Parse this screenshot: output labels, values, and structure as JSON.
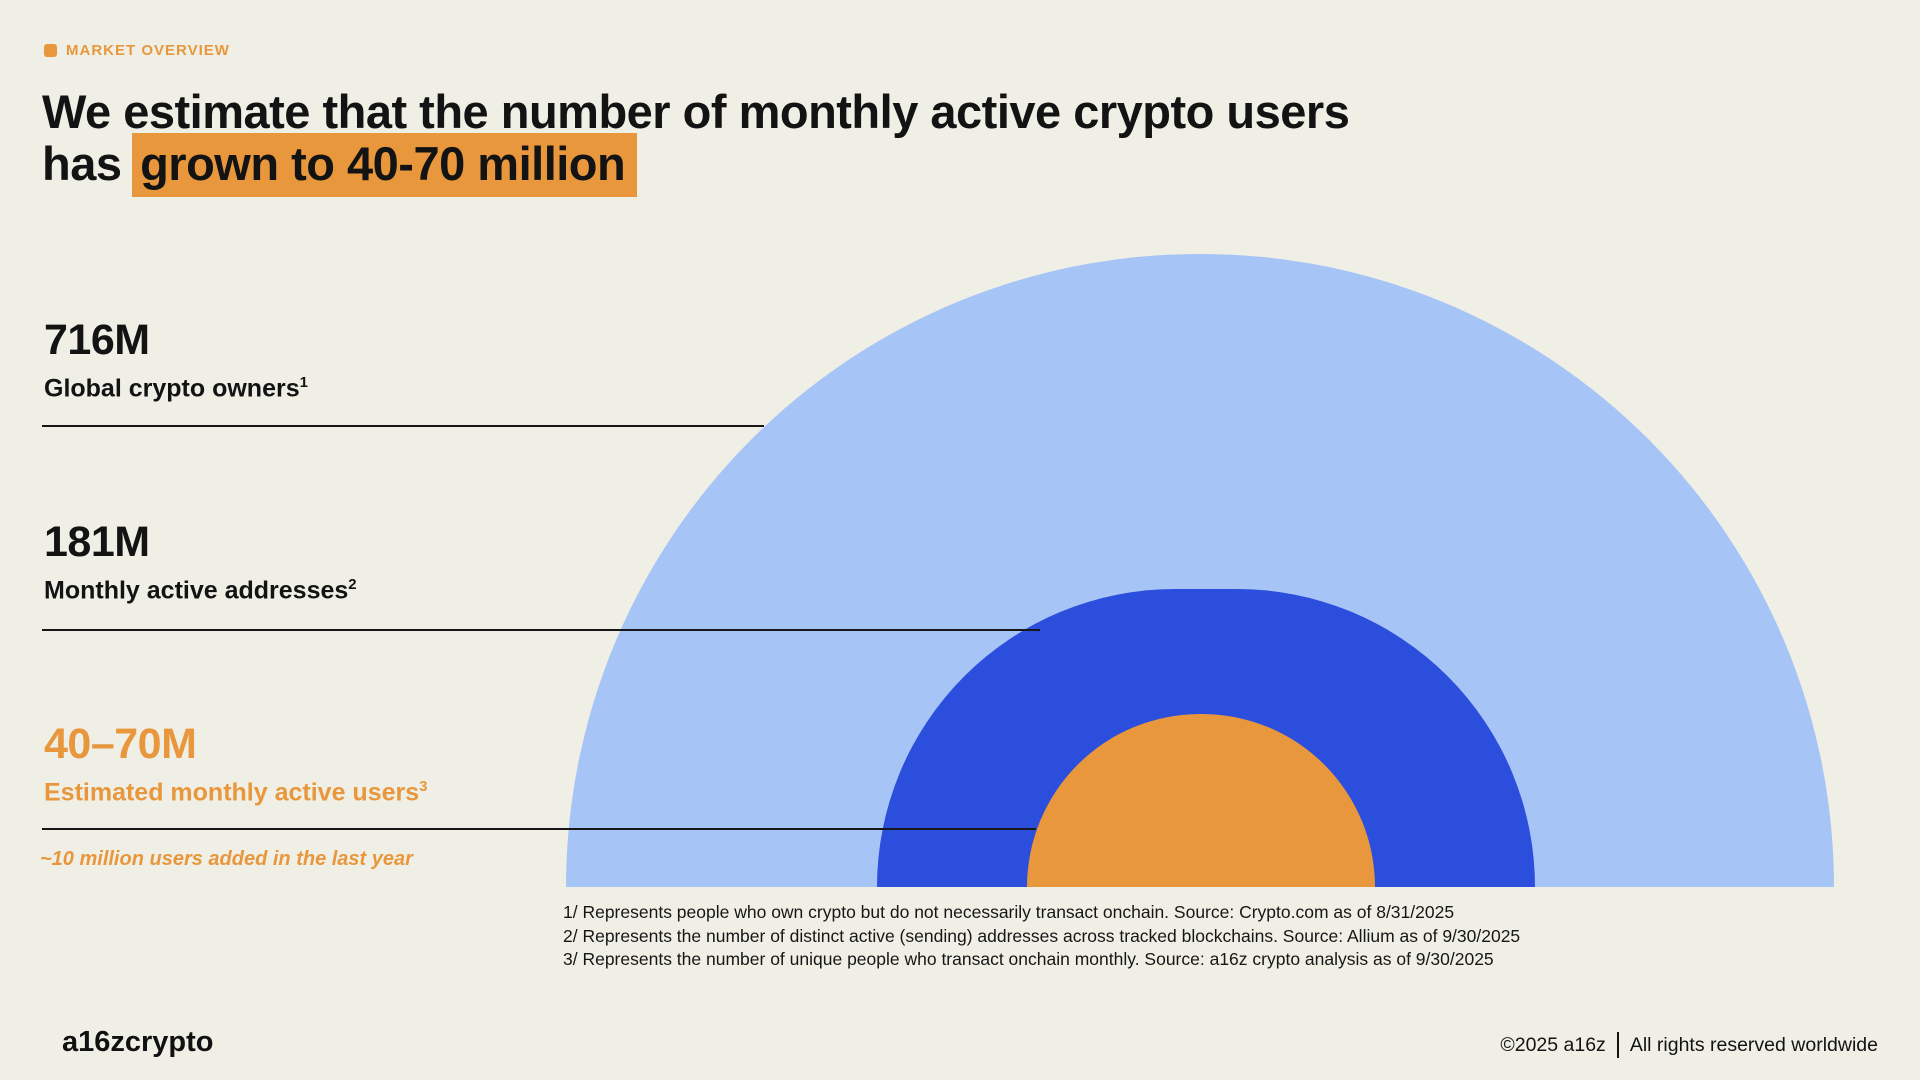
{
  "eyebrow": {
    "label": "MARKET OVERVIEW"
  },
  "title": {
    "line1": "We estimate that the number of monthly active crypto users",
    "line2_prefix": "has",
    "line2_highlight": "grown to 40-70 million"
  },
  "chart_data": {
    "type": "area",
    "subtype": "nested-semicircles",
    "unit": "millions of users",
    "series": [
      {
        "name": "Global crypto owners",
        "value_label": "716M",
        "value": 716,
        "footnote_ref": "1",
        "color": "#A7C4F6"
      },
      {
        "name": "Monthly active addresses",
        "value_label": "181M",
        "value": 181,
        "footnote_ref": "2",
        "color": "#2B4EDC"
      },
      {
        "name": "Estimated monthly active users",
        "value_label": "40–70M",
        "value_min": 40,
        "value_max": 70,
        "footnote_ref": "3",
        "color": "#E8973D"
      }
    ],
    "annotation": "~10 million users added in the last year",
    "legend_position": "left",
    "grid": false
  },
  "footnotes": [
    "1/ Represents people who own crypto but do not necessarily transact onchain. Source: Crypto.com as of 8/31/2025",
    "2/ Represents the number of distinct active (sending) addresses across tracked blockchains. Source: Allium as of 9/30/2025",
    "3/ Represents the number of unique people who transact onchain monthly. Source: a16z crypto analysis as of 9/30/2025"
  ],
  "footer": {
    "logo": "a16zcrypto",
    "copyright": "©2025 a16z",
    "rights": "All rights reserved worldwide"
  },
  "colors": {
    "background": "#F0EFE6",
    "accent_orange": "#E8973D",
    "light_blue": "#A7C4F6",
    "dark_blue": "#2B4EDC",
    "text": "#141414"
  }
}
